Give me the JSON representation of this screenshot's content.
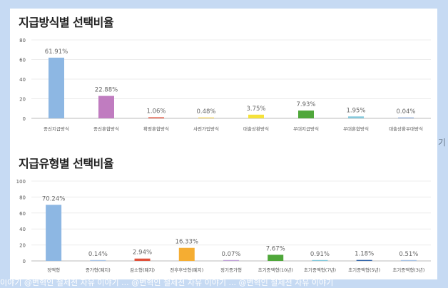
{
  "section1": {
    "title": "지급방식별 선택비율"
  },
  "section2": {
    "title": "지급유형별 선택비율"
  },
  "side_text": "기",
  "footer_text": "이야기 @변혁인 철제전 자유 이야기 ... @변혁인 철제전 자유 이야기 ... @변혁인 철제전 자유 이야기",
  "chart_data": [
    {
      "type": "bar",
      "title": "지급방식별 선택비율",
      "categories": [
        "종신지급방식",
        "종신혼합방식",
        "확정혼합방식",
        "사전가입방식",
        "대출상환방식",
        "우대지급방식",
        "우대혼합방식",
        "대출상환우대방식"
      ],
      "values": [
        61.91,
        22.88,
        1.06,
        0.48,
        3.75,
        7.93,
        1.95,
        0.04
      ],
      "value_labels": [
        "61.91%",
        "22.88%",
        "1.06%",
        "0.48%",
        "3.75%",
        "7.93%",
        "1.95%",
        "0.04%"
      ],
      "colors": [
        "#8db7e3",
        "#c07cc0",
        "#e0503a",
        "#f2cf52",
        "#f5e23a",
        "#4fa73a",
        "#87c9dc",
        "#8aa8d6"
      ],
      "ylim": [
        0,
        80
      ],
      "yticks": [
        0,
        20,
        40,
        60,
        80
      ],
      "grid": true
    },
    {
      "type": "bar",
      "title": "지급유형별 선택비율",
      "categories": [
        "정액형",
        "증가형(폐지)",
        "감소형(폐지)",
        "전후후박형(폐지)",
        "정기증가형",
        "초기증액형(10년)",
        "초기증액형(7년)",
        "초기증액형(5년)",
        "초기증액형(3년)"
      ],
      "values": [
        70.24,
        0.14,
        2.94,
        16.33,
        0.07,
        7.67,
        0.91,
        1.18,
        0.51
      ],
      "value_labels": [
        "70.24%",
        "0.14%",
        "2.94%",
        "16.33%",
        "0.07%",
        "7.67%",
        "0.91%",
        "1.18%",
        "0.51%"
      ],
      "colors": [
        "#8db7e3",
        "#a9c4e6",
        "#e0503a",
        "#f5ad32",
        "#bfa0d6",
        "#4fa73a",
        "#7fc6da",
        "#2d62a8",
        "#a6c1e3"
      ],
      "ylim": [
        0,
        100
      ],
      "yticks": [
        0,
        20,
        40,
        60,
        80,
        100
      ],
      "grid": true
    }
  ]
}
